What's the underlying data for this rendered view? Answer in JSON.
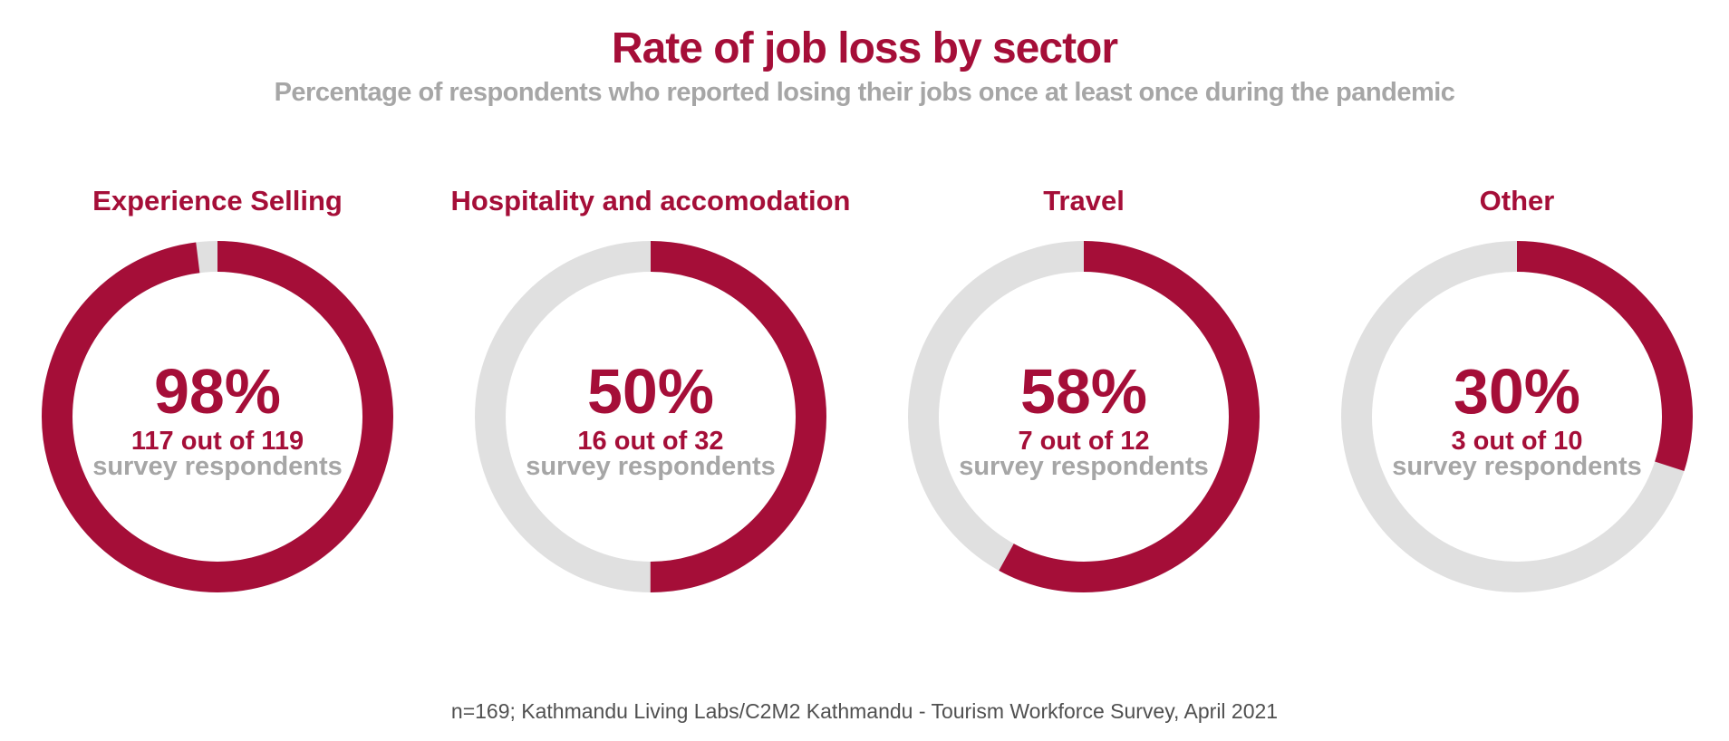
{
  "title": "Rate of job loss by sector",
  "subtitle": "Percentage of respondents who reported losing their jobs once at least once during the pandemic",
  "footer": "n=169; Kathmandu Living Labs/C2M2 Kathmandu - Tourism Workforce Survey, April 2021",
  "colors": {
    "accent": "#a50e38",
    "track": "#e0e0e0",
    "muted": "#a6a6a6",
    "footer": "#505050"
  },
  "chart_data": {
    "type": "donut",
    "series": [
      {
        "label": "Experience Selling",
        "percent_label": "98%",
        "value": 98,
        "count_label": "117 out of 119",
        "sub_label": "survey respondents"
      },
      {
        "label": "Hospitality and accomodation",
        "percent_label": "50%",
        "value": 50,
        "count_label": "16 out of 32",
        "sub_label": "survey respondents"
      },
      {
        "label": "Travel",
        "percent_label": "58%",
        "value": 58,
        "count_label": "7 out of 12",
        "sub_label": "survey respondents"
      },
      {
        "label": "Other",
        "percent_label": "30%",
        "value": 30,
        "count_label": "3 out of 10",
        "sub_label": "survey respondents"
      }
    ]
  }
}
